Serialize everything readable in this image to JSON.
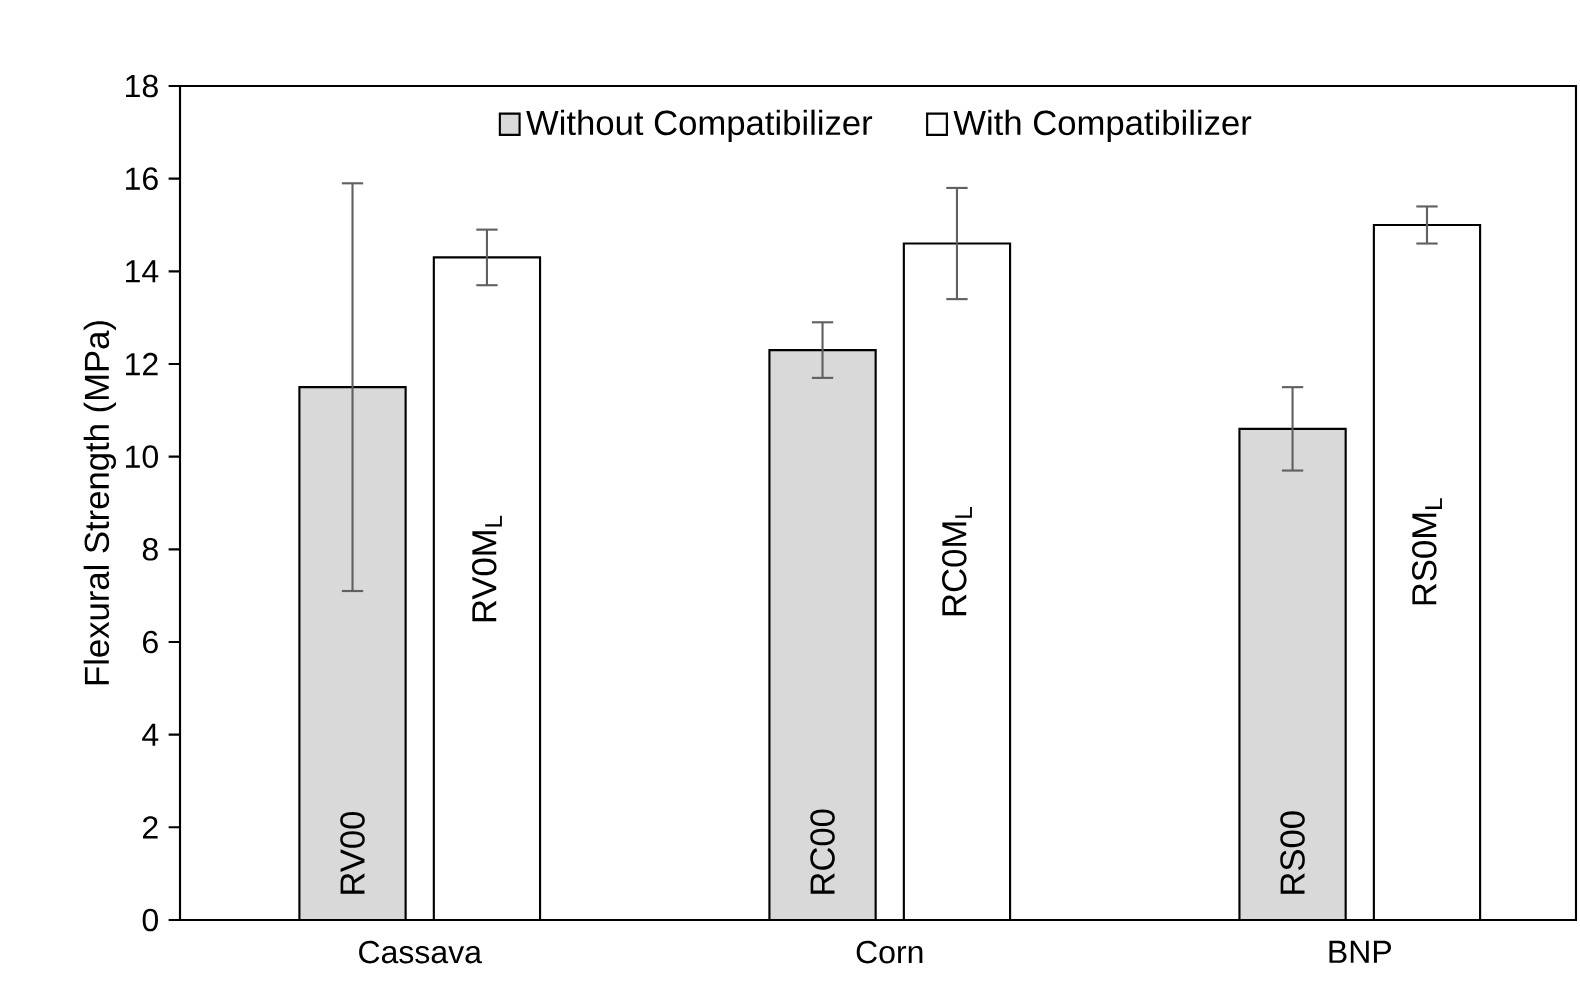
{
  "chart_data": {
    "type": "bar",
    "ylabel": "Flexural Strength (MPa)",
    "categories": [
      "Cassava",
      "Corn",
      "BNP"
    ],
    "series": [
      {
        "name": "Without Compatibilizer",
        "color": "#d9d9d9",
        "values": [
          11.5,
          12.3,
          10.6
        ],
        "errors": [
          4.4,
          0.6,
          0.9
        ],
        "value_labels": [
          "RV00",
          "RC00",
          "RS00"
        ]
      },
      {
        "name": "With Compatibilizer",
        "color": "#ffffff",
        "values": [
          14.3,
          14.6,
          15.0
        ],
        "errors": [
          0.6,
          1.2,
          0.4
        ],
        "value_labels": [
          "RV0M$_{L}$",
          "RC0M$_{L}$",
          "RS0M$_{L}$"
        ]
      }
    ],
    "ylim": [
      0,
      18
    ],
    "yticks": [
      0,
      2,
      4,
      6,
      8,
      10,
      12,
      14,
      16,
      18
    ],
    "grid": false,
    "legend": "top"
  }
}
